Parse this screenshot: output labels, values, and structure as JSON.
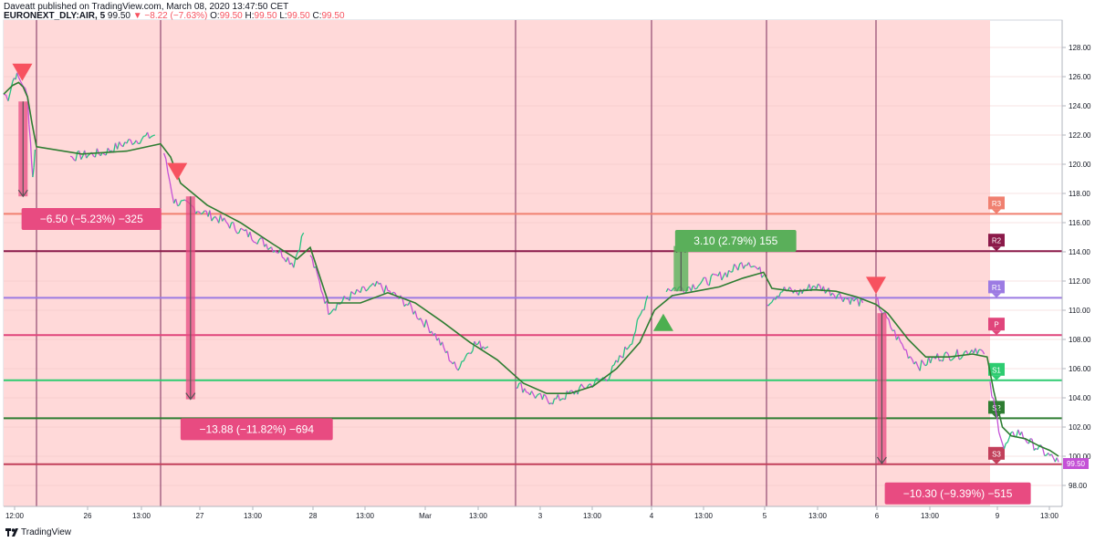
{
  "header": {
    "published_line": "Daveatt published on TradingView.com, March 08, 2020 13:47:50 CET",
    "symbol": "EURONEXT_DLY:AIR, 5",
    "last": "99.50",
    "change": "−8.22 (−7.63%)",
    "o_label": "O:",
    "o_value": "99.50",
    "h_label": "H:",
    "h_value": "99.50",
    "l_label": "L:",
    "l_value": "99.50",
    "c_label": "C:",
    "c_value": "99.50"
  },
  "footer": {
    "brand": "TradingView"
  },
  "colors": {
    "session_bg": "#ffd9d9",
    "price_up": "#26c281",
    "price_down": "#c451d6",
    "ma": "#2e7d32",
    "R3": "#f08070",
    "R2": "#8b1a4a",
    "R1": "#9c7be3",
    "P": "#e0457b",
    "S1": "#2ecc71",
    "S2": "#2e7d32",
    "S3": "#c2405b",
    "down_arrow": "#f7525f",
    "up_arrow": "#4caf50",
    "neg_box": "#e84b81",
    "pos_box": "#5aaf5a"
  },
  "chart_data": {
    "type": "line",
    "title": "",
    "y_range": [
      97,
      129.5
    ],
    "y_ticks": [
      "98.00",
      "100.00",
      "102.00",
      "104.00",
      "106.00",
      "108.00",
      "110.00",
      "112.00",
      "114.00",
      "116.00",
      "118.00",
      "120.00",
      "122.00",
      "124.00",
      "126.00",
      "128.00"
    ],
    "x_ticks": [
      "12:00",
      "26",
      "13:00",
      "27",
      "13:00",
      "28",
      "13:00",
      "Mar",
      "13:00",
      "3",
      "13:00",
      "4",
      "13:00",
      "5",
      "13:00",
      "6",
      "13:00",
      "9",
      "13:00"
    ],
    "last_price": "99.50",
    "pivots": [
      {
        "name": "R3",
        "value": 116.6
      },
      {
        "name": "R2",
        "value": 114.05
      },
      {
        "name": "R1",
        "value": 110.85
      },
      {
        "name": "P",
        "value": 108.3
      },
      {
        "name": "S1",
        "value": 105.2
      },
      {
        "name": "S2",
        "value": 102.6
      },
      {
        "name": "S3",
        "value": 99.45
      }
    ],
    "price": [
      [
        0,
        124.8
      ],
      [
        0.3,
        124.6
      ],
      [
        0.6,
        125.7
      ],
      [
        0.8,
        126.1
      ],
      [
        1.0,
        125.9
      ],
      [
        1.3,
        125.5
      ],
      [
        1.6,
        124.5
      ],
      [
        1.8,
        121.5
      ],
      [
        1.95,
        119.0
      ],
      [
        2.1,
        121.0
      ],
      [
        2.5,
        120.5
      ],
      [
        2.8,
        120.8
      ],
      [
        3.0,
        121.5
      ],
      [
        3.25,
        122.0
      ],
      [
        3.35,
        120.8
      ],
      [
        3.5,
        117.5
      ],
      [
        3.8,
        117.0
      ],
      [
        4.2,
        116.2
      ],
      [
        4.7,
        115.0
      ],
      [
        5.1,
        114.0
      ],
      [
        5.3,
        113.2
      ],
      [
        5.45,
        115.3
      ],
      [
        5.55,
        113.8
      ],
      [
        5.75,
        110.0
      ],
      [
        6.0,
        111.0
      ],
      [
        6.3,
        111.7
      ],
      [
        6.6,
        110.5
      ],
      [
        6.9,
        108.5
      ],
      [
        7.15,
        106.0
      ],
      [
        7.35,
        107.7
      ],
      [
        7.5,
        107.5
      ],
      [
        7.8,
        105.0
      ],
      [
        8.1,
        104.0
      ],
      [
        8.3,
        103.8
      ],
      [
        8.6,
        104.5
      ],
      [
        9.0,
        105.5
      ],
      [
        9.3,
        108.0
      ],
      [
        9.5,
        111.0
      ],
      [
        9.8,
        111.5
      ],
      [
        10.1,
        111.5
      ],
      [
        10.5,
        112.0
      ],
      [
        10.8,
        112.5
      ],
      [
        11.2,
        113.4
      ],
      [
        11.45,
        112.4
      ],
      [
        11.5,
        110.5
      ],
      [
        11.8,
        111.4
      ],
      [
        12.1,
        111.2
      ],
      [
        12.4,
        111.7
      ],
      [
        12.7,
        111.3
      ],
      [
        13.0,
        110.8
      ],
      [
        13.3,
        110.5
      ],
      [
        13.55,
        110.7
      ],
      [
        13.7,
        109.6
      ],
      [
        13.9,
        108.2
      ],
      [
        14.1,
        107.0
      ],
      [
        14.3,
        106.2
      ],
      [
        14.6,
        106.8
      ],
      [
        15.0,
        107.0
      ],
      [
        15.25,
        107.4
      ],
      [
        15.4,
        107.0
      ],
      [
        15.5,
        104.8
      ],
      [
        15.7,
        102.5
      ],
      [
        15.9,
        100.5
      ],
      [
        16.1,
        101.3
      ],
      [
        16.3,
        101.7
      ],
      [
        16.6,
        101.0
      ],
      [
        16.9,
        100.5
      ],
      [
        17.2,
        100.0
      ],
      [
        17.45,
        99.6
      ]
    ],
    "ma": [
      [
        0,
        124.8
      ],
      [
        0.6,
        125.4
      ],
      [
        1.0,
        125.6
      ],
      [
        1.3,
        125.3
      ],
      [
        1.6,
        124.6
      ],
      [
        1.9,
        122.8
      ],
      [
        2.2,
        121.2
      ],
      [
        2.6,
        120.7
      ],
      [
        3.0,
        120.9
      ],
      [
        3.3,
        121.4
      ],
      [
        3.45,
        120.5
      ],
      [
        3.6,
        118.7
      ],
      [
        4.0,
        117.2
      ],
      [
        4.5,
        116.0
      ],
      [
        5.0,
        114.5
      ],
      [
        5.35,
        113.5
      ],
      [
        5.55,
        114.3
      ],
      [
        5.75,
        110.5
      ],
      [
        6.1,
        110.5
      ],
      [
        6.4,
        111.2
      ],
      [
        6.7,
        110.5
      ],
      [
        7.0,
        109.2
      ],
      [
        7.3,
        107.8
      ],
      [
        7.6,
        106.6
      ],
      [
        7.9,
        105.0
      ],
      [
        8.2,
        104.3
      ],
      [
        8.5,
        104.3
      ],
      [
        8.8,
        104.8
      ],
      [
        9.1,
        106.0
      ],
      [
        9.4,
        107.8
      ],
      [
        9.6,
        110.0
      ],
      [
        9.9,
        111.0
      ],
      [
        10.3,
        111.3
      ],
      [
        10.7,
        111.6
      ],
      [
        11.1,
        112.2
      ],
      [
        11.45,
        112.6
      ],
      [
        11.6,
        111.5
      ],
      [
        12.0,
        111.3
      ],
      [
        12.4,
        111.4
      ],
      [
        12.8,
        111.3
      ],
      [
        13.2,
        110.9
      ],
      [
        13.55,
        110.4
      ],
      [
        13.75,
        109.8
      ],
      [
        14.1,
        108.0
      ],
      [
        14.4,
        106.8
      ],
      [
        14.8,
        106.8
      ],
      [
        15.2,
        107.0
      ],
      [
        15.45,
        106.8
      ],
      [
        15.6,
        104.5
      ],
      [
        15.85,
        102.0
      ],
      [
        16.1,
        101.4
      ],
      [
        16.5,
        101.2
      ],
      [
        16.9,
        100.7
      ],
      [
        17.2,
        100.4
      ],
      [
        17.45,
        100.0
      ]
    ],
    "signals": [
      {
        "type": "sell",
        "x": 1.25,
        "y": 126.2
      },
      {
        "type": "sell",
        "x": 3.55,
        "y": 119.4
      },
      {
        "type": "buy",
        "x": 9.75,
        "y": 109.2
      },
      {
        "type": "sell",
        "x": 13.55,
        "y": 111.6
      }
    ],
    "trades": [
      {
        "x": 1.3,
        "from": 124.3,
        "to": 117.8,
        "label": "−6.50 (−5.23%) −325",
        "box_x": 1.2,
        "box_y": 117.0,
        "positive": false
      },
      {
        "x": 3.75,
        "from": 117.8,
        "to": 103.9,
        "label": "−13.88 (−11.82%) −694",
        "box_x": 3.6,
        "box_y": 102.6,
        "positive": false
      },
      {
        "x": 10.05,
        "from": 111.3,
        "to": 114.4,
        "label": "3.10 (2.79%) 155",
        "box_x": 9.95,
        "box_y": 115.5,
        "positive": true
      },
      {
        "x": 13.65,
        "from": 109.8,
        "to": 99.5,
        "label": "−10.30 (−9.39%) −515",
        "box_x": 13.7,
        "box_y": 98.2,
        "positive": false
      }
    ]
  }
}
